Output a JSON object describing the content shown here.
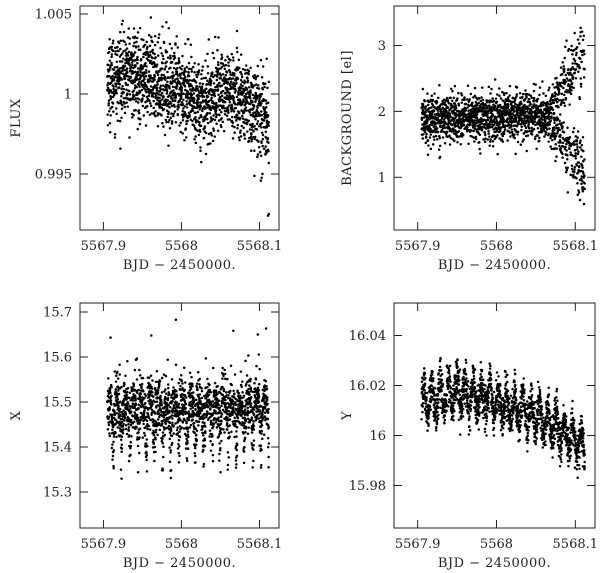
{
  "chart_data": [
    {
      "type": "scatter",
      "panel": "top-left",
      "xlabel": "BJD − 2450000.",
      "ylabel": "FLUX",
      "xlim": [
        5567.87,
        5568.125
      ],
      "ylim": [
        0.9915,
        1.0055
      ],
      "xticks": [
        5567.9,
        5568,
        5568.1
      ],
      "xtick_labels": [
        "5567.9",
        "5568",
        "5568.1"
      ],
      "yticks": [
        0.995,
        1,
        1.005
      ],
      "ytick_labels": [
        "0.995",
        "1",
        "1.005"
      ],
      "grid": false,
      "trend": {
        "x": [
          5567.905,
          5567.93,
          5567.955,
          5567.98,
          5568.005,
          5568.03,
          5568.055,
          5568.08,
          5568.112
        ],
        "y": [
          1.0008,
          1.0013,
          1.001,
          1.0006,
          1.0,
          0.9994,
          1.0004,
          0.9995,
          0.9983
        ]
      },
      "spread": 0.0013,
      "n_points": 1800,
      "outliers": [
        [
          5568.111,
          0.9924
        ],
        [
          5568.112,
          0.9925
        ]
      ]
    },
    {
      "type": "scatter",
      "panel": "top-right",
      "xlabel": "BJD − 2450000.",
      "ylabel": "BACKGROUND [el]",
      "xlim": [
        5567.87,
        5568.125
      ],
      "ylim": [
        0.2,
        3.6
      ],
      "xticks": [
        5567.9,
        5568,
        5568.1
      ],
      "xtick_labels": [
        "5567.9",
        "5568",
        "5568.1"
      ],
      "yticks": [
        1,
        2,
        3
      ],
      "ytick_labels": [
        "1",
        "2",
        "3"
      ],
      "grid": false,
      "trend": {
        "x": [
          5567.905,
          5567.95,
          5568.0,
          5568.06,
          5568.112
        ],
        "y": [
          1.88,
          1.9,
          1.92,
          1.93,
          1.95
        ]
      },
      "spread": 0.18,
      "n_points": 1800,
      "divergence": {
        "start_x": 5568.06,
        "end_x": 5568.112,
        "upper_max": 3.35,
        "lower_min": 0.6
      }
    },
    {
      "type": "scatter",
      "panel": "bottom-left",
      "xlabel": "BJD − 2450000.",
      "ylabel": "X",
      "xlim": [
        5567.87,
        5568.125
      ],
      "ylim": [
        15.22,
        15.72
      ],
      "xticks": [
        5567.9,
        5568,
        5568.1
      ],
      "xtick_labels": [
        "5567.9",
        "5568",
        "5568.1"
      ],
      "yticks": [
        15.3,
        15.4,
        15.5,
        15.6,
        15.7
      ],
      "ytick_labels": [
        "15.3",
        "15.4",
        "15.5",
        "15.6",
        "15.7"
      ],
      "grid": false,
      "trend": {
        "x": [
          5567.905,
          5568.0,
          5568.112
        ],
        "y": [
          15.47,
          15.48,
          15.49
        ]
      },
      "upper_band": 15.51,
      "oscillation_amplitude": 0.09,
      "oscillation_period": 0.0105,
      "spread": 0.035,
      "n_points": 1800
    },
    {
      "type": "scatter",
      "panel": "bottom-right",
      "xlabel": "BJD − 2450000.",
      "ylabel": "Y",
      "xlim": [
        5567.87,
        5568.125
      ],
      "ylim": [
        15.963,
        16.053
      ],
      "xticks": [
        5567.9,
        5568,
        5568.1
      ],
      "xtick_labels": [
        "5567.9",
        "5568",
        "5568.1"
      ],
      "yticks": [
        15.98,
        16,
        16.02,
        16.04
      ],
      "ytick_labels": [
        "15.98",
        "16",
        "16.02",
        "16.04"
      ],
      "grid": false,
      "trend": {
        "x": [
          5567.905,
          5567.95,
          5568.0,
          5568.05,
          5568.112
        ],
        "y": [
          16.013,
          16.018,
          16.013,
          16.008,
          15.996
        ]
      },
      "oscillation_amplitude": 0.007,
      "oscillation_period": 0.0105,
      "spread": 0.004,
      "n_points": 1800
    }
  ]
}
